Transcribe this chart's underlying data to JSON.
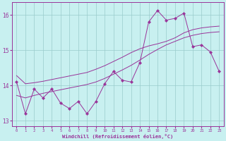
{
  "xlabel": "Windchill (Refroidissement éolien,°C)",
  "bg_color": "#c8f0f0",
  "line_color": "#993399",
  "grid_color": "#99cccc",
  "ylim": [
    12.85,
    16.35
  ],
  "xlim": [
    -0.5,
    23.5
  ],
  "yticks": [
    13,
    14,
    15,
    16
  ],
  "xticks": [
    0,
    1,
    2,
    3,
    4,
    5,
    6,
    7,
    8,
    9,
    10,
    11,
    12,
    13,
    14,
    15,
    16,
    17,
    18,
    19,
    20,
    21,
    22,
    23
  ],
  "curve1_x": [
    0,
    1,
    2,
    3,
    4,
    5,
    6,
    7,
    8,
    9,
    10,
    11,
    12,
    13,
    14,
    15,
    16,
    17,
    18,
    19,
    20,
    21,
    22,
    23
  ],
  "curve1_y": [
    14.1,
    13.2,
    13.9,
    13.65,
    13.9,
    13.5,
    13.35,
    13.55,
    13.2,
    13.55,
    14.05,
    14.4,
    14.15,
    14.1,
    14.65,
    15.8,
    16.12,
    15.85,
    15.9,
    16.05,
    15.1,
    15.15,
    14.95,
    14.4
  ],
  "curve2_x": [
    0,
    1,
    2,
    3,
    4,
    5,
    6,
    7,
    8,
    9,
    10,
    11,
    12,
    13,
    14,
    15,
    16,
    17,
    18,
    19,
    20,
    21,
    22,
    23
  ],
  "curve2_y": [
    13.72,
    13.65,
    13.72,
    13.78,
    13.83,
    13.88,
    13.93,
    13.98,
    14.03,
    14.1,
    14.2,
    14.32,
    14.44,
    14.57,
    14.72,
    14.88,
    15.02,
    15.15,
    15.25,
    15.35,
    15.42,
    15.47,
    15.5,
    15.52
  ],
  "curve3_x": [
    0,
    1,
    2,
    3,
    4,
    5,
    6,
    7,
    8,
    9,
    10,
    11,
    12,
    13,
    14,
    15,
    16,
    17,
    18,
    19,
    20,
    21,
    22,
    23
  ],
  "curve3_y": [
    14.28,
    14.05,
    14.08,
    14.12,
    14.17,
    14.22,
    14.27,
    14.32,
    14.37,
    14.46,
    14.56,
    14.68,
    14.8,
    14.93,
    15.04,
    15.12,
    15.18,
    15.25,
    15.35,
    15.49,
    15.58,
    15.63,
    15.66,
    15.68
  ]
}
